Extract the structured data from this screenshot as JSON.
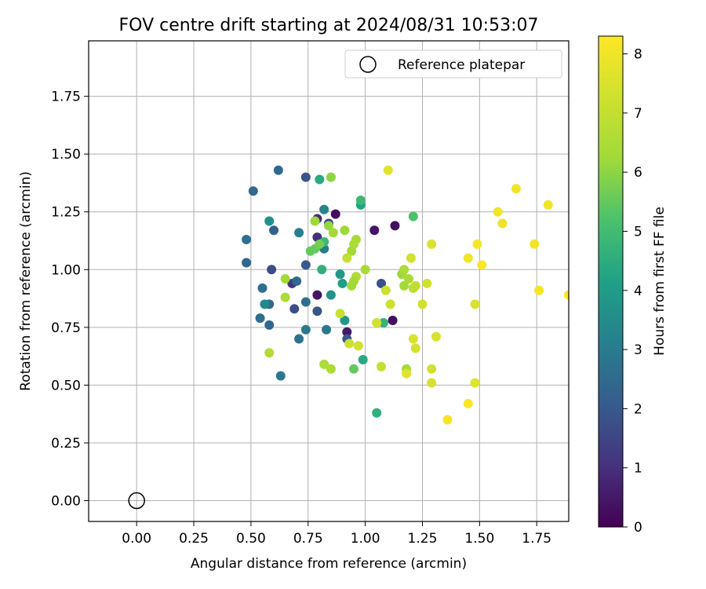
{
  "chart_data": {
    "type": "scatter",
    "title": "FOV centre drift starting at 2024/08/31 10:53:07",
    "xlabel": "Angular distance from reference (arcmin)",
    "ylabel": "Rotation from reference (arcmin)",
    "xlim": [
      -0.21,
      1.89
    ],
    "ylim": [
      -0.09,
      1.99
    ],
    "xticks": [
      0.0,
      0.25,
      0.5,
      0.75,
      1.0,
      1.25,
      1.5,
      1.75
    ],
    "xtick_labels": [
      "0.00",
      "0.25",
      "0.50",
      "0.75",
      "1.00",
      "1.25",
      "1.50",
      "1.75"
    ],
    "yticks": [
      0.0,
      0.25,
      0.5,
      0.75,
      1.0,
      1.25,
      1.5,
      1.75
    ],
    "ytick_labels": [
      "0.00",
      "0.25",
      "0.50",
      "0.75",
      "1.00",
      "1.25",
      "1.50",
      "1.75"
    ],
    "grid": true,
    "legend": {
      "position": "top-right",
      "label": "Reference platepar"
    },
    "reference_point": {
      "x": 0.0,
      "y": 0.0
    },
    "colorbar": {
      "label": "Hours from first FF file",
      "colormap": "viridis",
      "range": [
        0,
        8.3
      ],
      "ticks": [
        0,
        1,
        2,
        3,
        4,
        5,
        6,
        7,
        8
      ],
      "tick_labels": [
        "0",
        "1",
        "2",
        "3",
        "4",
        "5",
        "6",
        "7",
        "8"
      ]
    },
    "points": [
      [
        1.13,
        1.19,
        0.3
      ],
      [
        0.87,
        1.24,
        0.3
      ],
      [
        1.04,
        1.17,
        0.4
      ],
      [
        0.79,
        0.89,
        0.4
      ],
      [
        1.12,
        0.78,
        0.3
      ],
      [
        0.92,
        0.73,
        0.5
      ],
      [
        0.79,
        1.22,
        0.9
      ],
      [
        0.79,
        1.14,
        1.0
      ],
      [
        0.68,
        0.94,
        1.1
      ],
      [
        0.59,
        1.0,
        1.7
      ],
      [
        0.69,
        0.83,
        1.7
      ],
      [
        0.79,
        0.82,
        1.9
      ],
      [
        0.74,
        1.4,
        1.9
      ],
      [
        0.74,
        1.02,
        2.0
      ],
      [
        0.92,
        0.7,
        2.0
      ],
      [
        1.07,
        0.94,
        1.8
      ],
      [
        0.84,
        1.2,
        1.5
      ],
      [
        0.6,
        1.17,
        2.2
      ],
      [
        0.51,
        1.34,
        2.5
      ],
      [
        0.62,
        1.43,
        2.5
      ],
      [
        0.48,
        1.13,
        2.7
      ],
      [
        0.48,
        1.03,
        2.4
      ],
      [
        0.55,
        0.92,
        2.6
      ],
      [
        0.58,
        0.85,
        2.5
      ],
      [
        0.54,
        0.79,
        2.6
      ],
      [
        0.58,
        0.76,
        2.4
      ],
      [
        0.7,
        0.95,
        2.5
      ],
      [
        0.74,
        0.86,
        2.6
      ],
      [
        0.71,
        0.7,
        2.7
      ],
      [
        0.74,
        0.74,
        2.9
      ],
      [
        0.83,
        0.74,
        2.9
      ],
      [
        0.82,
        1.09,
        3.0
      ],
      [
        0.71,
        1.16,
        3.1
      ],
      [
        0.63,
        0.54,
        2.9
      ],
      [
        0.82,
        1.26,
        3.3
      ],
      [
        0.58,
        1.21,
        3.6
      ],
      [
        0.56,
        0.85,
        3.4
      ],
      [
        0.85,
        0.89,
        3.7
      ],
      [
        0.89,
        0.98,
        3.9
      ],
      [
        0.9,
        0.94,
        4.0
      ],
      [
        0.91,
        0.78,
        3.8
      ],
      [
        0.98,
        1.28,
        4.2
      ],
      [
        0.8,
        1.39,
        4.4
      ],
      [
        0.81,
        1.0,
        4.6
      ],
      [
        0.99,
        0.61,
        4.4
      ],
      [
        1.08,
        0.77,
        4.7
      ],
      [
        1.05,
        0.38,
        4.6
      ],
      [
        0.82,
        1.12,
        4.9
      ],
      [
        0.98,
        1.3,
        4.9
      ],
      [
        1.21,
        1.23,
        5.2
      ],
      [
        0.78,
        1.09,
        5.5
      ],
      [
        0.8,
        1.11,
        5.7
      ],
      [
        0.76,
        1.08,
        5.5
      ],
      [
        0.95,
        0.57,
        5.5
      ],
      [
        0.85,
        1.4,
        6.0
      ],
      [
        0.78,
        1.21,
        6.2
      ],
      [
        0.84,
        1.19,
        6.1
      ],
      [
        0.86,
        1.16,
        6.3
      ],
      [
        0.91,
        1.17,
        6.2
      ],
      [
        0.96,
        1.13,
        6.4
      ],
      [
        0.95,
        1.11,
        6.5
      ],
      [
        0.94,
        1.08,
        6.3
      ],
      [
        1.0,
        1.0,
        6.4
      ],
      [
        0.96,
        0.97,
        6.6
      ],
      [
        0.95,
        0.95,
        6.3
      ],
      [
        0.94,
        0.93,
        6.3
      ],
      [
        0.82,
        0.59,
        6.5
      ],
      [
        0.85,
        0.57,
        6.5
      ],
      [
        0.65,
        0.96,
        6.3
      ],
      [
        0.65,
        0.88,
        6.5
      ],
      [
        0.58,
        0.64,
        6.6
      ],
      [
        1.16,
        0.98,
        6.2
      ],
      [
        1.19,
        0.96,
        6.4
      ],
      [
        1.17,
        0.93,
        6.3
      ],
      [
        1.18,
        0.57,
        6.4
      ],
      [
        1.17,
        1.0,
        6.5
      ],
      [
        1.21,
        0.92,
        6.8
      ],
      [
        1.22,
        0.93,
        6.9
      ],
      [
        1.27,
        0.94,
        7.3
      ],
      [
        1.2,
        1.05,
        7.3
      ],
      [
        1.25,
        0.85,
        7.3
      ],
      [
        1.11,
        0.85,
        7.2
      ],
      [
        1.09,
        0.91,
        7.2
      ],
      [
        1.05,
        0.77,
        7.3
      ],
      [
        0.89,
        0.81,
        7.1
      ],
      [
        0.92,
        1.05,
        7.0
      ],
      [
        0.93,
        0.68,
        7.2
      ],
      [
        0.97,
        0.67,
        7.3
      ],
      [
        1.07,
        0.58,
        7.1
      ],
      [
        1.21,
        0.7,
        7.5
      ],
      [
        1.22,
        0.66,
        7.4
      ],
      [
        1.29,
        0.57,
        7.3
      ],
      [
        1.29,
        0.51,
        7.4
      ],
      [
        1.31,
        0.71,
        7.5
      ],
      [
        1.29,
        1.11,
        7.5
      ],
      [
        1.18,
        0.55,
        7.6
      ],
      [
        1.1,
        1.43,
        7.6
      ],
      [
        1.48,
        0.85,
        7.5
      ],
      [
        1.48,
        0.51,
        7.6
      ],
      [
        1.45,
        1.05,
        8.0
      ],
      [
        1.49,
        1.11,
        8.1
      ],
      [
        1.51,
        1.02,
        8.2
      ],
      [
        1.58,
        1.25,
        8.0
      ],
      [
        1.6,
        1.2,
        7.9
      ],
      [
        1.66,
        1.35,
        8.0
      ],
      [
        1.8,
        1.28,
        8.0
      ],
      [
        1.74,
        1.11,
        8.0
      ],
      [
        1.76,
        0.91,
        8.1
      ],
      [
        1.36,
        0.35,
        8.1
      ],
      [
        1.45,
        0.42,
        8.2
      ],
      [
        1.89,
        0.89,
        8.3
      ]
    ]
  }
}
